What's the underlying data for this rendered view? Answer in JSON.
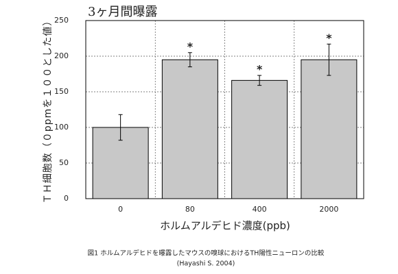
{
  "chart_data": {
    "type": "bar",
    "title": "3ヶ月間曝露",
    "y_label": "ＴＨ細胞数（０ppmを１００とした値）",
    "x_label": "ホルムアルデヒド濃度(ppb)",
    "categories": [
      "0",
      "80",
      "400",
      "2000"
    ],
    "values": [
      100,
      195,
      166,
      195
    ],
    "errors": [
      18,
      10,
      7,
      22
    ],
    "annotations": [
      {
        "category": "80",
        "text": "*"
      },
      {
        "category": "400",
        "text": "*"
      },
      {
        "category": "2000",
        "text": "*"
      }
    ],
    "color": "#c8c8c8",
    "ylim": [
      0,
      250
    ],
    "yticks": [
      0,
      50,
      100,
      150,
      200,
      250
    ],
    "grid": true,
    "caption": [
      "図1 ホルムアルデヒドを曝露したマウスの嗅球におけるTH陽性ニューロンの比較",
      "(Hayashi S. 2004)"
    ]
  }
}
